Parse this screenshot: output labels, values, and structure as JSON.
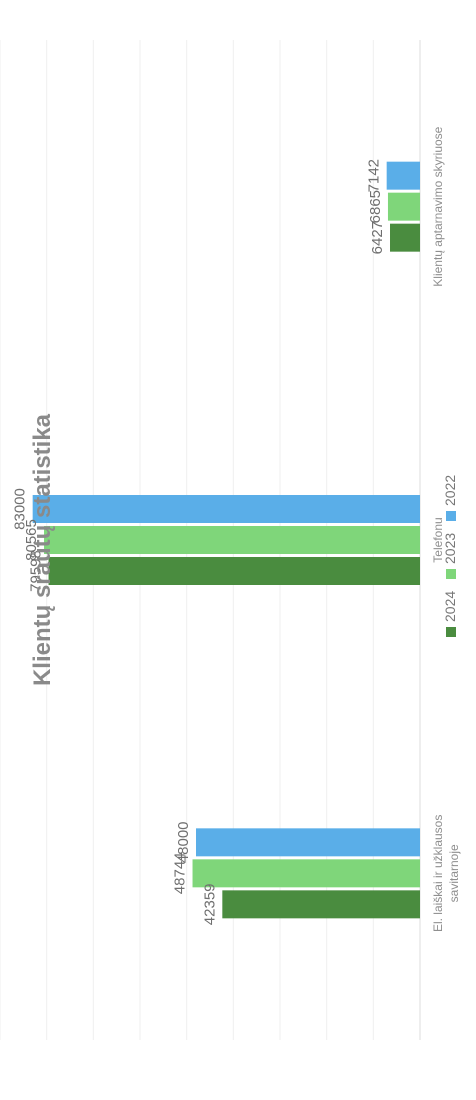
{
  "chart_data": {
    "type": "bar",
    "orientation": "vertical, rotated 90° counter-clockwise in image",
    "title": "Klientų srautų statistika",
    "categories": [
      [
        "El. laiškai ir užklausos",
        "savitarnoje"
      ],
      [
        "Telefonu"
      ],
      [
        "Klientų aptarnavimo skyriuose"
      ]
    ],
    "series": [
      {
        "name": "2024",
        "color": "#4a8c3f",
        "values": [
          42359,
          79598,
          6427
        ]
      },
      {
        "name": "2023",
        "color": "#7fd67a",
        "values": [
          48744,
          80565,
          6865
        ]
      },
      {
        "name": "2022",
        "color": "#5aaee8",
        "values": [
          48000,
          83000,
          7142
        ]
      }
    ],
    "ylim": [
      0,
      90000
    ],
    "grid": true,
    "legend_position": "bottom"
  }
}
